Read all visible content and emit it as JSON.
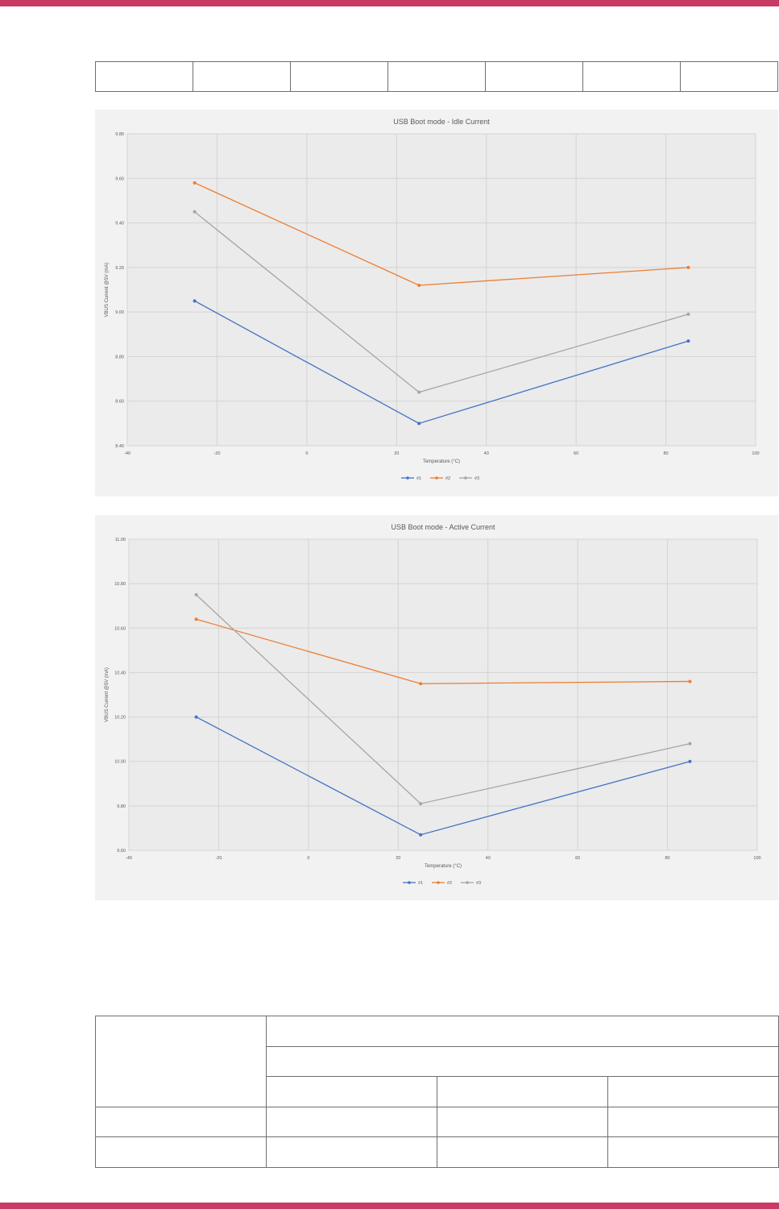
{
  "chart_data": [
    {
      "type": "line",
      "title": "USB Boot mode - Idle Current",
      "xlabel": "Temperature (°C)",
      "ylabel": "VBUS Current @5V (mA)",
      "xlim": [
        -40,
        100
      ],
      "ylim": [
        8.4,
        9.8
      ],
      "x_ticks": [
        -40,
        -20,
        0,
        20,
        40,
        60,
        80,
        100
      ],
      "y_ticks": [
        8.4,
        8.6,
        8.8,
        9.0,
        9.2,
        9.4,
        9.6,
        9.8
      ],
      "x_tick_labels": [
        "-40",
        "-20",
        "0",
        "20",
        "40",
        "60",
        "80",
        "100"
      ],
      "y_tick_labels": [
        "8.40",
        "8.60",
        "8.80",
        "9.00",
        "9.20",
        "9.40",
        "9.60",
        "9.80"
      ],
      "grid": true,
      "legend_position": "bottom",
      "x": [
        -25,
        25,
        85
      ],
      "series": [
        {
          "name": "#1",
          "color": "#4472c4",
          "values": [
            9.05,
            8.5,
            8.87
          ]
        },
        {
          "name": "#2",
          "color": "#ed7d31",
          "values": [
            9.58,
            9.12,
            9.2
          ]
        },
        {
          "name": "#3",
          "color": "#a5a5a5",
          "values": [
            9.45,
            8.64,
            8.99
          ]
        }
      ]
    },
    {
      "type": "line",
      "title": "USB Boot mode - Active Current",
      "xlabel": "Temperature (°C)",
      "ylabel": "VBUS Current @5V (mA)",
      "xlim": [
        -40,
        100
      ],
      "ylim": [
        9.6,
        11.0
      ],
      "x_ticks": [
        -40,
        -20,
        0,
        20,
        40,
        60,
        80,
        100
      ],
      "y_ticks": [
        9.6,
        9.8,
        10.0,
        10.2,
        10.4,
        10.6,
        10.8,
        11.0
      ],
      "x_tick_labels": [
        "-40",
        "-20",
        "0",
        "20",
        "40",
        "60",
        "80",
        "100"
      ],
      "y_tick_labels": [
        "9.60",
        "9.80",
        "10.00",
        "10.20",
        "10.40",
        "10.60",
        "10.80",
        "11.00"
      ],
      "grid": true,
      "legend_position": "bottom",
      "x": [
        -25,
        25,
        85
      ],
      "series": [
        {
          "name": "#1",
          "color": "#4472c4",
          "values": [
            10.2,
            9.67,
            10.0
          ]
        },
        {
          "name": "#2",
          "color": "#ed7d31",
          "values": [
            10.64,
            10.35,
            10.36
          ]
        },
        {
          "name": "#3",
          "color": "#a5a5a5",
          "values": [
            10.75,
            9.81,
            10.08
          ]
        }
      ]
    }
  ]
}
